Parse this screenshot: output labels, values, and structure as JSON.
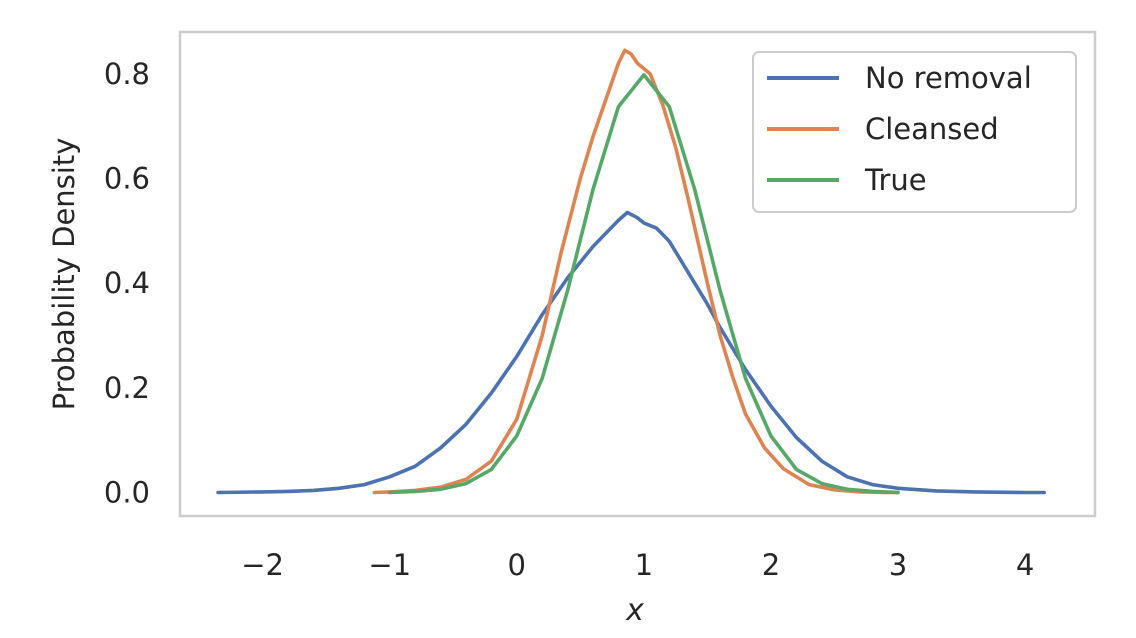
{
  "chart_data": {
    "type": "line",
    "title": "",
    "xlabel": "x",
    "ylabel": "Probability Density",
    "xlim": [
      -2.65,
      4.55
    ],
    "ylim": [
      -0.045,
      0.88
    ],
    "xticks": [
      -2,
      -1,
      0,
      1,
      2,
      3,
      4
    ],
    "xtick_labels": [
      "−2",
      "−1",
      "0",
      "1",
      "2",
      "3",
      "4"
    ],
    "yticks": [
      0.0,
      0.2,
      0.4,
      0.6,
      0.8
    ],
    "ytick_labels": [
      "0.0",
      "0.2",
      "0.4",
      "0.6",
      "0.8"
    ],
    "grid": false,
    "legend_position": "top-right",
    "series": [
      {
        "name": "No removal",
        "color": "#4c72b0",
        "x": [
          -2.35,
          -2.0,
          -1.8,
          -1.6,
          -1.4,
          -1.2,
          -1.0,
          -0.8,
          -0.6,
          -0.4,
          -0.2,
          0.0,
          0.2,
          0.4,
          0.6,
          0.8,
          0.87,
          0.95,
          1.0,
          1.1,
          1.2,
          1.3,
          1.4,
          1.5,
          1.6,
          1.8,
          2.0,
          2.2,
          2.4,
          2.6,
          2.8,
          3.0,
          3.3,
          3.6,
          4.0,
          4.15
        ],
        "y": [
          0.0,
          0.001,
          0.002,
          0.004,
          0.008,
          0.015,
          0.03,
          0.05,
          0.085,
          0.13,
          0.19,
          0.26,
          0.34,
          0.41,
          0.47,
          0.52,
          0.535,
          0.525,
          0.515,
          0.505,
          0.48,
          0.44,
          0.4,
          0.36,
          0.315,
          0.235,
          0.165,
          0.105,
          0.06,
          0.03,
          0.015,
          0.008,
          0.003,
          0.001,
          0.0,
          0.0
        ]
      },
      {
        "name": "Cleansed",
        "color": "#dd8452",
        "x": [
          -1.12,
          -1.0,
          -0.8,
          -0.6,
          -0.4,
          -0.2,
          0.0,
          0.2,
          0.35,
          0.5,
          0.6,
          0.7,
          0.8,
          0.85,
          0.9,
          0.95,
          1.05,
          1.15,
          1.25,
          1.35,
          1.5,
          1.6,
          1.7,
          1.8,
          1.95,
          2.1,
          2.3,
          2.5,
          2.7,
          2.9,
          3.0
        ],
        "y": [
          0.0,
          0.001,
          0.004,
          0.01,
          0.025,
          0.06,
          0.14,
          0.3,
          0.46,
          0.6,
          0.68,
          0.75,
          0.82,
          0.845,
          0.838,
          0.82,
          0.8,
          0.74,
          0.66,
          0.56,
          0.4,
          0.3,
          0.22,
          0.15,
          0.085,
          0.045,
          0.015,
          0.005,
          0.001,
          0.0,
          0.0
        ]
      },
      {
        "name": "True",
        "color": "#55a868",
        "x": [
          -1.0,
          -0.8,
          -0.6,
          -0.4,
          -0.2,
          0.0,
          0.2,
          0.4,
          0.6,
          0.8,
          1.0,
          1.2,
          1.4,
          1.6,
          1.8,
          2.0,
          2.2,
          2.4,
          2.6,
          2.8,
          3.0
        ],
        "y": [
          0.0,
          0.002,
          0.006,
          0.017,
          0.044,
          0.108,
          0.218,
          0.386,
          0.579,
          0.737,
          0.798,
          0.737,
          0.579,
          0.386,
          0.218,
          0.108,
          0.044,
          0.017,
          0.006,
          0.002,
          0.0
        ]
      }
    ]
  }
}
